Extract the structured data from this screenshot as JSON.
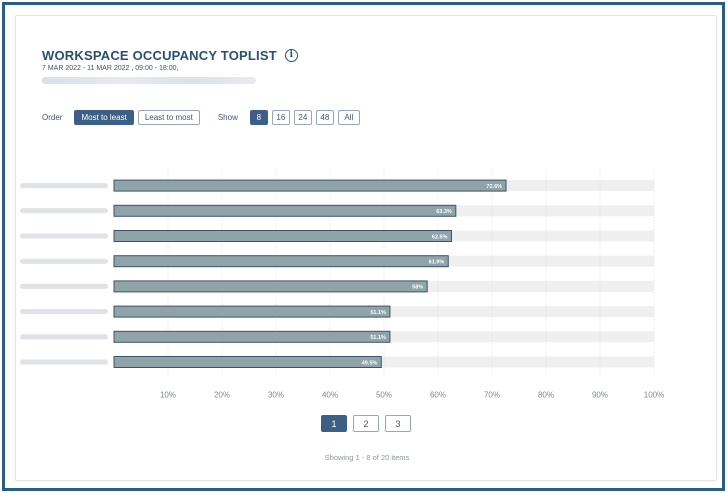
{
  "header": {
    "title": "WORKSPACE OCCUPANCY TOPLIST",
    "subtitle": "7 MAR 2022 - 11 MAR 2022 , 09:00 - 18:00,"
  },
  "controls": {
    "order_label": "Order",
    "order_options": [
      "Most to least",
      "Least to most"
    ],
    "order_selected": "Most to least",
    "show_label": "Show",
    "show_options": [
      "8",
      "16",
      "24",
      "48",
      "All"
    ],
    "show_selected": "8"
  },
  "chart_data": {
    "type": "bar",
    "orientation": "horizontal",
    "categories": [
      "",
      "",
      "",
      "",
      "",
      "",
      "",
      ""
    ],
    "values": [
      72.6,
      63.3,
      62.5,
      61.9,
      58,
      51.1,
      51.1,
      49.5
    ],
    "value_labels": [
      "72.6%",
      "63.3%",
      "62.5%",
      "61.9%",
      "58%",
      "51.1%",
      "51.1%",
      "49.5%"
    ],
    "xlim": [
      0,
      100
    ],
    "x_ticks": [
      "10%",
      "20%",
      "30%",
      "40%",
      "50%",
      "60%",
      "70%",
      "80%",
      "90%",
      "100%"
    ],
    "grid": true,
    "bar_color": "#8fa3a8",
    "track_color": "#efefef"
  },
  "pagination": {
    "pages": [
      "1",
      "2",
      "3"
    ],
    "current": "1",
    "summary": "Showing 1 - 8 of 20 items"
  }
}
